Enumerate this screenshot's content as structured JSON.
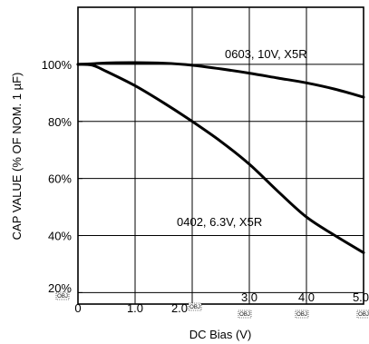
{
  "chart_data": {
    "type": "line",
    "xlabel": "DC Bias (V)",
    "ylabel": "CAP VALUE (% OF NOM. 1 µF)",
    "xlim": [
      0,
      5
    ],
    "ylim": [
      16,
      120
    ],
    "grid": true,
    "x_ticks": [
      "0",
      "1.0",
      "2.0",
      "3.0",
      "4.0",
      "5.0"
    ],
    "y_ticks": [
      {
        "value": 20,
        "label": "20%"
      },
      {
        "value": 40,
        "label": "40%"
      },
      {
        "value": 60,
        "label": "60%"
      },
      {
        "value": 80,
        "label": "80%"
      },
      {
        "value": 100,
        "label": "100%"
      }
    ],
    "placeholder_marks": [
      "OBJ",
      "OBJ",
      "OBJ",
      "OBJ",
      "OBJ"
    ],
    "series": [
      {
        "name": "0603, 10V, X5R",
        "x": [
          0,
          0.25,
          0.5,
          1.0,
          1.5,
          2.0,
          2.5,
          3.0,
          3.5,
          4.0,
          4.5,
          5.0
        ],
        "y": [
          100,
          100.2,
          100.5,
          100.6,
          100.4,
          99.7,
          98.4,
          96.9,
          95.2,
          93.5,
          91.3,
          88.5
        ]
      },
      {
        "name": "0402, 6.3V, X5R",
        "x": [
          0,
          0.25,
          0.5,
          1.0,
          1.5,
          2.0,
          2.5,
          3.0,
          3.5,
          4.0,
          4.5,
          5.0
        ],
        "y": [
          100,
          99.7,
          97.5,
          92.5,
          86.5,
          80,
          73,
          65,
          55.5,
          46.5,
          40,
          34
        ]
      }
    ]
  }
}
